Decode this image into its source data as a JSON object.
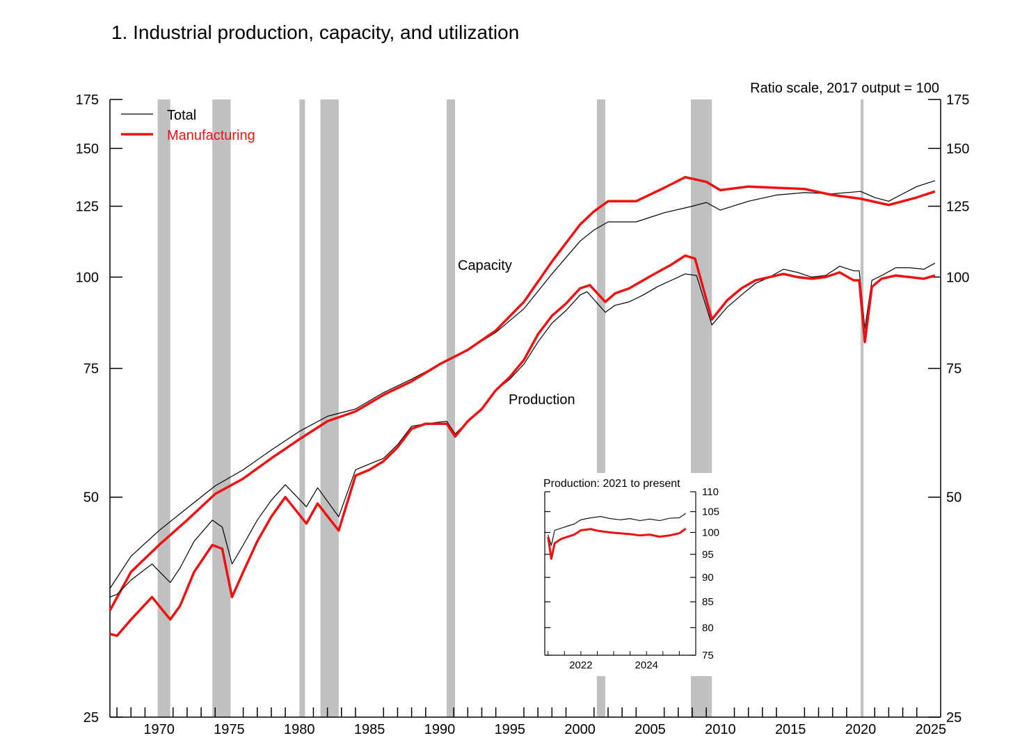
{
  "chart_data": {
    "type": "line",
    "title": "1.  Industrial production, capacity, and utilization",
    "scale_note": "Ratio scale, 2017 output = 100",
    "y_scale": "log",
    "ylim": [
      25,
      175
    ],
    "xlim": [
      1966.5,
      2025.7
    ],
    "y_ticks": [
      25,
      50,
      75,
      100,
      125,
      150,
      175
    ],
    "y_tick_labels": [
      "25",
      "50",
      "75",
      "100",
      "125",
      "150",
      "175"
    ],
    "x_tick_labels": [
      "1970",
      "1975",
      "1980",
      "1985",
      "1990",
      "1995",
      "2000",
      "2005",
      "2010",
      "2015",
      "2020",
      "2025"
    ],
    "x_tick_values": [
      1970,
      1975,
      1980,
      1985,
      1990,
      1995,
      2000,
      2005,
      2010,
      2015,
      2020,
      2025
    ],
    "legend": {
      "placement": "top-left",
      "entries": [
        "Total",
        "Manufacturing"
      ]
    },
    "annotations": {
      "capacity": "Capacity",
      "production": "Production"
    },
    "colors": {
      "total": "#000000",
      "manufacturing": "#ee1111",
      "recession": "#c0c0c0"
    },
    "recessions": [
      [
        1969.9,
        1970.8
      ],
      [
        1973.8,
        1975.1
      ],
      [
        1980.0,
        1980.4
      ],
      [
        1981.5,
        1982.8
      ],
      [
        1990.5,
        1991.1
      ],
      [
        2001.2,
        2001.8
      ],
      [
        2007.9,
        2009.4
      ],
      [
        2020.0,
        2020.2
      ]
    ],
    "series": [
      {
        "name": "Total",
        "group": "Capacity",
        "x": [
          1966.5,
          1968,
          1970,
          1972,
          1974,
          1976,
          1978,
          1980,
          1982,
          1984,
          1986,
          1988,
          1990,
          1992,
          1994,
          1996,
          1998,
          2000,
          2001,
          2002,
          2004,
          2006,
          2008,
          2009,
          2010,
          2012,
          2014,
          2016,
          2018,
          2020,
          2021,
          2022,
          2023,
          2024,
          2025.3
        ],
        "values": [
          37.5,
          41.5,
          45.0,
          48.3,
          51.8,
          54.5,
          58.0,
          61.5,
          64.5,
          66.0,
          69.5,
          72.5,
          76.0,
          79.5,
          84.0,
          90.5,
          101.0,
          112.0,
          116.0,
          119.0,
          119.0,
          122.5,
          125.0,
          126.5,
          123.5,
          127.0,
          129.5,
          130.5,
          130.0,
          131.0,
          128.5,
          127.0,
          130.0,
          133.0,
          135.5
        ]
      },
      {
        "name": "Manufacturing",
        "group": "Capacity",
        "x": [
          1966.5,
          1968,
          1970,
          1972,
          1974,
          1976,
          1978,
          1980,
          1982,
          1984,
          1986,
          1988,
          1990,
          1992,
          1994,
          1996,
          1998,
          2000,
          2001,
          2002,
          2004,
          2006,
          2007.5,
          2009,
          2010,
          2012,
          2014,
          2016,
          2018,
          2020,
          2022,
          2024,
          2025.3
        ],
        "values": [
          35.0,
          39.5,
          43.0,
          46.5,
          50.5,
          53.0,
          56.5,
          60.0,
          63.5,
          65.5,
          69.0,
          72.0,
          76.0,
          79.5,
          84.5,
          92.5,
          105.0,
          118.0,
          123.0,
          127.0,
          127.0,
          132.5,
          137.0,
          135.0,
          131.5,
          133.0,
          132.5,
          132.0,
          129.5,
          128.0,
          125.5,
          128.5,
          131.0
        ]
      },
      {
        "name": "Total",
        "group": "Production",
        "x": [
          1966.5,
          1967,
          1968,
          1969.5,
          1970.8,
          1971.5,
          1972.5,
          1973.8,
          1974.5,
          1975.2,
          1976,
          1977,
          1978,
          1979,
          1980.5,
          1981.3,
          1982.8,
          1984,
          1985,
          1986,
          1987,
          1988,
          1989,
          1990.5,
          1991.1,
          1992,
          1993,
          1994,
          1995,
          1996,
          1997,
          1998,
          1999,
          2000,
          2000.5,
          2001.8,
          2002.5,
          2003.5,
          2004.5,
          2005.5,
          2006.5,
          2007.5,
          2008.3,
          2009.4,
          2010.5,
          2011.5,
          2012.5,
          2013.5,
          2014.5,
          2015.5,
          2016.5,
          2017.5,
          2018.5,
          2019.5,
          2019.9,
          2020.3,
          2020.8,
          2021.5,
          2022.5,
          2023.5,
          2024.5,
          2025.3
        ],
        "values": [
          36.5,
          36.8,
          38.5,
          40.5,
          38.2,
          40.0,
          43.5,
          46.5,
          45.5,
          40.5,
          43.0,
          46.5,
          49.5,
          52.0,
          48.5,
          51.5,
          47.0,
          54.5,
          55.5,
          56.5,
          59.0,
          62.5,
          63.0,
          63.5,
          61.0,
          63.5,
          66.0,
          70.0,
          72.5,
          76.0,
          81.5,
          86.5,
          90.0,
          94.5,
          95.5,
          89.5,
          91.5,
          92.5,
          94.5,
          97.0,
          99.0,
          101.0,
          100.5,
          86.0,
          91.0,
          94.5,
          98.0,
          100.0,
          102.5,
          101.5,
          100.0,
          100.5,
          103.5,
          102.0,
          102.0,
          85.0,
          99.0,
          100.5,
          103.0,
          103.0,
          102.5,
          104.5
        ]
      },
      {
        "name": "Manufacturing",
        "group": "Production",
        "x": [
          1966.5,
          1967,
          1968,
          1969.5,
          1970.8,
          1971.5,
          1972.5,
          1973.8,
          1974.5,
          1975.2,
          1976,
          1977,
          1978,
          1979,
          1980.5,
          1981.3,
          1982.8,
          1984,
          1985,
          1986,
          1987,
          1988,
          1989,
          1990.5,
          1991.1,
          1992,
          1993,
          1994,
          1995,
          1996,
          1997,
          1998,
          1999,
          2000,
          2000.7,
          2001.8,
          2002.5,
          2003.5,
          2004.5,
          2005.5,
          2006.5,
          2007.5,
          2008.2,
          2009.4,
          2010.5,
          2011.5,
          2012.5,
          2013.5,
          2014.5,
          2015.5,
          2016.5,
          2017.5,
          2018.5,
          2019.5,
          2019.9,
          2020.3,
          2020.8,
          2021.5,
          2022.5,
          2023.5,
          2024.5,
          2025.3
        ],
        "values": [
          32.5,
          32.3,
          34.0,
          36.5,
          34.0,
          35.5,
          39.5,
          43.0,
          42.5,
          36.5,
          39.5,
          43.5,
          47.0,
          50.0,
          46.0,
          49.0,
          45.0,
          53.5,
          54.5,
          56.0,
          58.5,
          62.0,
          63.0,
          63.0,
          60.5,
          63.5,
          66.0,
          70.0,
          73.0,
          77.0,
          83.5,
          88.5,
          92.0,
          96.5,
          97.5,
          92.5,
          95.0,
          96.5,
          99.0,
          101.5,
          104.0,
          107.0,
          106.0,
          87.5,
          93.0,
          96.5,
          99.0,
          100.0,
          101.0,
          100.0,
          99.5,
          100.0,
          101.5,
          99.0,
          99.0,
          81.5,
          97.0,
          99.5,
          100.5,
          100.0,
          99.5,
          100.5
        ]
      }
    ],
    "inset": {
      "title": "Production: 2021 to present",
      "y_scale": "log",
      "ylim": [
        75,
        110
      ],
      "xlim": [
        2020.9,
        2025.5
      ],
      "y_tick_labels": [
        "75",
        "80",
        "85",
        "90",
        "95",
        "100",
        "105",
        "110"
      ],
      "y_tick_values": [
        75,
        80,
        85,
        90,
        95,
        100,
        105,
        110
      ],
      "x_tick_labels": [
        "2022",
        "2024"
      ],
      "x_tick_values": [
        2022,
        2024
      ],
      "series": [
        {
          "name": "Total",
          "x": [
            2021.0,
            2021.1,
            2021.2,
            2021.4,
            2021.6,
            2021.8,
            2022.0,
            2022.3,
            2022.6,
            2022.9,
            2023.2,
            2023.5,
            2023.8,
            2024.1,
            2024.4,
            2024.7,
            2025.0,
            2025.2
          ],
          "values": [
            99.5,
            97.0,
            100.5,
            101.0,
            101.5,
            102.0,
            103.0,
            103.5,
            103.8,
            103.3,
            103.0,
            103.3,
            102.8,
            103.2,
            102.8,
            103.4,
            103.5,
            104.6
          ]
        },
        {
          "name": "Manufacturing",
          "x": [
            2021.0,
            2021.1,
            2021.2,
            2021.4,
            2021.6,
            2021.8,
            2022.0,
            2022.3,
            2022.5,
            2022.9,
            2023.2,
            2023.5,
            2023.8,
            2024.1,
            2024.4,
            2024.7,
            2025.0,
            2025.2
          ],
          "values": [
            99.0,
            94.0,
            97.5,
            98.5,
            99.0,
            99.5,
            100.5,
            100.8,
            100.4,
            100.0,
            99.8,
            99.6,
            99.3,
            99.5,
            99.0,
            99.3,
            99.8,
            100.9
          ]
        }
      ]
    }
  }
}
